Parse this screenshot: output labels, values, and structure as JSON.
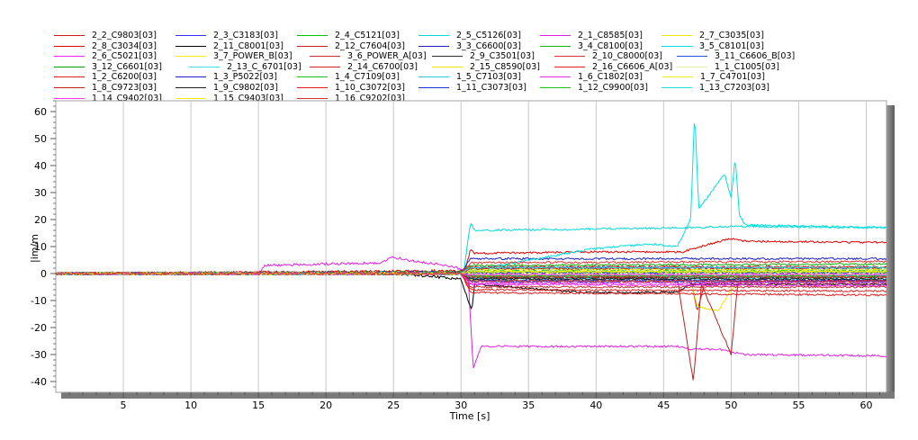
{
  "chart_data": {
    "type": "line",
    "title": "",
    "xlabel": "Time  [s]",
    "ylabel": "|im/m",
    "xlim": [
      0,
      61.5
    ],
    "ylim": [
      -44,
      64
    ],
    "xticks": [
      5,
      10,
      15,
      20,
      25,
      30,
      35,
      40,
      45,
      50,
      55,
      60
    ],
    "yticks": [
      -40,
      -30,
      -20,
      -10,
      0,
      10,
      20,
      30,
      40,
      50,
      60
    ],
    "grid": true,
    "legend_position": "top",
    "series": [
      {
        "name": "2_2_C9803[03]",
        "color": "#d01818",
        "points": [
          [
            0,
            0
          ],
          [
            30,
            0.5
          ],
          [
            30.7,
            -1.5
          ],
          [
            40,
            -1.8
          ],
          [
            47,
            -2
          ],
          [
            47.5,
            -14
          ],
          [
            48,
            -4
          ],
          [
            50,
            -3
          ],
          [
            61.5,
            -2.5
          ]
        ]
      },
      {
        "name": "2_3_C3183[03]",
        "color": "#3030ff",
        "points": [
          [
            0,
            0
          ],
          [
            30,
            0
          ],
          [
            30.7,
            2
          ],
          [
            40,
            2.3
          ],
          [
            61.5,
            2
          ]
        ]
      },
      {
        "name": "2_4_C5121[03]",
        "color": "#00c000",
        "points": [
          [
            0,
            0
          ],
          [
            30,
            0.3
          ],
          [
            30.7,
            -1
          ],
          [
            61.5,
            -1
          ]
        ]
      },
      {
        "name": "2_5_C5126[03]",
        "color": "#00d8d8",
        "points": [
          [
            0,
            0
          ],
          [
            30.2,
            0.5
          ],
          [
            30.7,
            19
          ],
          [
            31,
            16
          ],
          [
            40,
            16.5
          ],
          [
            47,
            17
          ],
          [
            50,
            17.5
          ],
          [
            61.5,
            17
          ]
        ]
      },
      {
        "name": "2_1_C8585[03]",
        "color": "#e020e0",
        "points": [
          [
            0,
            0
          ],
          [
            15,
            0
          ],
          [
            15.5,
            3
          ],
          [
            24,
            4
          ],
          [
            25,
            6
          ],
          [
            26,
            5
          ],
          [
            29,
            3
          ],
          [
            30.5,
            1
          ],
          [
            30.9,
            -35
          ],
          [
            31.5,
            -27
          ],
          [
            40,
            -27
          ],
          [
            46,
            -27
          ],
          [
            47,
            -28
          ],
          [
            49,
            -28
          ],
          [
            51,
            -30
          ],
          [
            61.5,
            -30.5
          ]
        ]
      },
      {
        "name": "2_7_C3035[03]",
        "color": "#e8e800",
        "points": [
          [
            0,
            0
          ],
          [
            30,
            0
          ],
          [
            30.7,
            -2.5
          ],
          [
            47,
            -3
          ],
          [
            47.5,
            -12
          ],
          [
            49,
            -14
          ],
          [
            50,
            -6
          ],
          [
            50.5,
            -4
          ],
          [
            61.5,
            -3.5
          ]
        ]
      },
      {
        "name": "2_8_C3034[03]",
        "color": "#e00000",
        "points": [
          [
            0,
            0
          ],
          [
            30.3,
            1
          ],
          [
            30.7,
            9
          ],
          [
            31,
            7.5
          ],
          [
            40,
            8
          ],
          [
            46.5,
            8
          ],
          [
            47,
            9
          ],
          [
            50,
            13
          ],
          [
            51,
            12
          ],
          [
            61.5,
            11.5
          ]
        ]
      },
      {
        "name": "2_11_C8001[03]",
        "color": "#000000",
        "points": [
          [
            0,
            0
          ],
          [
            25,
            0
          ],
          [
            30,
            -2
          ],
          [
            30.8,
            -14
          ],
          [
            31,
            -4
          ],
          [
            39,
            -7
          ],
          [
            46,
            -7
          ],
          [
            47,
            -4
          ],
          [
            61.5,
            -4
          ]
        ]
      },
      {
        "name": "2_12_C7604[03]",
        "color": "#c02020",
        "points": [
          [
            0,
            0
          ],
          [
            30,
            0
          ],
          [
            30.7,
            -1
          ],
          [
            46,
            -1.5
          ],
          [
            47.2,
            -40
          ],
          [
            47.8,
            -4
          ],
          [
            50,
            -30
          ],
          [
            50.5,
            -3
          ],
          [
            61.5,
            -3
          ]
        ]
      },
      {
        "name": "3_3_C6600[03]",
        "color": "#2020c0",
        "points": [
          [
            0,
            0
          ],
          [
            30,
            0.5
          ],
          [
            30.7,
            5.5
          ],
          [
            61.5,
            5.5
          ]
        ]
      },
      {
        "name": "3_4_C8100[03]",
        "color": "#10b010",
        "points": [
          [
            0,
            0
          ],
          [
            30,
            0.5
          ],
          [
            30.7,
            3
          ],
          [
            61.5,
            3.5
          ]
        ]
      },
      {
        "name": "3_5_C8101[03]",
        "color": "#00e0e0",
        "points": [
          [
            0,
            0
          ],
          [
            30,
            0
          ],
          [
            30.7,
            1
          ],
          [
            39.5,
            9
          ],
          [
            44,
            11
          ],
          [
            46,
            10
          ],
          [
            47,
            20
          ],
          [
            47.3,
            60
          ],
          [
            47.6,
            24
          ],
          [
            48.5,
            30
          ],
          [
            49.5,
            37
          ],
          [
            50,
            28
          ],
          [
            50.3,
            43
          ],
          [
            50.6,
            22
          ],
          [
            51,
            18
          ],
          [
            61.5,
            17
          ]
        ]
      },
      {
        "name": "2_6_C5021[03]",
        "color": "#ff20ff",
        "points": [
          [
            0,
            0
          ],
          [
            30,
            0
          ],
          [
            30.7,
            -4
          ],
          [
            61.5,
            -4.5
          ]
        ]
      },
      {
        "name": "3_7_POWER_B[03]",
        "color": "#f0f000",
        "points": [
          [
            0,
            0
          ],
          [
            30,
            0
          ],
          [
            30.7,
            -0.5
          ],
          [
            61.5,
            -0.5
          ]
        ]
      },
      {
        "name": "3_6_POWER_A[03]",
        "color": "#c03030",
        "points": [
          [
            0,
            0
          ],
          [
            30,
            0
          ],
          [
            30.7,
            -5
          ],
          [
            61.5,
            -5
          ]
        ]
      },
      {
        "name": "2_9_C3501[03]",
        "color": "#303030",
        "points": [
          [
            0,
            0
          ],
          [
            30,
            0
          ],
          [
            30.7,
            -1.5
          ],
          [
            61.5,
            -1.5
          ]
        ]
      },
      {
        "name": "2_10_C8000[03]",
        "color": "#e03030",
        "points": [
          [
            0,
            0
          ],
          [
            30,
            0
          ],
          [
            30.7,
            4
          ],
          [
            61.5,
            4.5
          ]
        ]
      },
      {
        "name": "3_11_C6606_B[03]",
        "color": "#3050e0",
        "points": [
          [
            0,
            0
          ],
          [
            30,
            0
          ],
          [
            30.7,
            -3
          ],
          [
            61.5,
            -3
          ]
        ]
      },
      {
        "name": "3_12_C6601[03]",
        "color": "#00a000",
        "points": [
          [
            0,
            0
          ],
          [
            30,
            0
          ],
          [
            30.7,
            0.5
          ],
          [
            61.5,
            0.5
          ]
        ]
      },
      {
        "name": "2_13_C_6701[03]",
        "color": "#40e0e0",
        "points": [
          [
            0,
            0
          ],
          [
            30,
            0
          ],
          [
            30.7,
            -2
          ],
          [
            61.5,
            -2
          ]
        ]
      },
      {
        "name": "2_14_C6700[03]",
        "color": "#d02020",
        "points": [
          [
            0,
            0
          ],
          [
            30,
            0
          ],
          [
            30.7,
            2.5
          ],
          [
            61.5,
            2.5
          ]
        ]
      },
      {
        "name": "2_15_C8590[03]",
        "color": "#e8e800",
        "points": [
          [
            0,
            0
          ],
          [
            30,
            0
          ],
          [
            30.7,
            1.5
          ],
          [
            61.5,
            1.5
          ]
        ]
      },
      {
        "name": "2_16_C6606_A[03]",
        "color": "#e02020",
        "points": [
          [
            0,
            0
          ],
          [
            30,
            0
          ],
          [
            30.7,
            -6
          ],
          [
            61.5,
            -6.5
          ]
        ]
      },
      {
        "name": "1_1_C1005[03]",
        "color": "#e8e8a0",
        "points": [
          [
            0,
            0
          ],
          [
            30,
            0
          ],
          [
            30.7,
            0
          ],
          [
            61.5,
            0
          ]
        ]
      },
      {
        "name": "1_2_C6200[03]",
        "color": "#e02020",
        "points": [
          [
            0,
            0
          ],
          [
            30,
            0
          ],
          [
            30.7,
            -7
          ],
          [
            61.5,
            -8
          ]
        ]
      },
      {
        "name": "1_3_P5022[03]",
        "color": "#2020d0",
        "points": [
          [
            0,
            0
          ],
          [
            30,
            0
          ],
          [
            30.7,
            -2.5
          ],
          [
            61.5,
            -2.5
          ]
        ]
      },
      {
        "name": "1_4_C7109[03]",
        "color": "#20c020",
        "points": [
          [
            0,
            0
          ],
          [
            30,
            0
          ],
          [
            30.7,
            1
          ],
          [
            61.5,
            1
          ]
        ]
      },
      {
        "name": "1_5_C7103[03]",
        "color": "#30d0d0",
        "points": [
          [
            0,
            0
          ],
          [
            30,
            0
          ],
          [
            30.7,
            -1
          ],
          [
            61.5,
            -1
          ]
        ]
      },
      {
        "name": "1_6_C1802[03]",
        "color": "#e030e0",
        "points": [
          [
            0,
            0
          ],
          [
            30,
            0
          ],
          [
            30.7,
            -3.5
          ],
          [
            61.5,
            -3.5
          ]
        ]
      },
      {
        "name": "1_7_C4701[03]",
        "color": "#f0f020",
        "points": [
          [
            0,
            0
          ],
          [
            30,
            0
          ],
          [
            30.7,
            0.8
          ],
          [
            61.5,
            0.8
          ]
        ]
      },
      {
        "name": "1_8_C9723[03]",
        "color": "#c02020",
        "points": [
          [
            0,
            0
          ],
          [
            30,
            0
          ],
          [
            30.7,
            1.8
          ],
          [
            61.5,
            2
          ]
        ]
      },
      {
        "name": "1_9_C9802[03]",
        "color": "#202020",
        "points": [
          [
            0,
            0
          ],
          [
            30,
            0
          ],
          [
            30.7,
            -2
          ],
          [
            61.5,
            -2
          ]
        ]
      },
      {
        "name": "1_10_C3072[03]",
        "color": "#e02020",
        "points": [
          [
            0,
            0
          ],
          [
            30,
            0
          ],
          [
            30.7,
            -1.2
          ],
          [
            61.5,
            -1.2
          ]
        ]
      },
      {
        "name": "1_11_C3073[03]",
        "color": "#2030e0",
        "points": [
          [
            0,
            0
          ],
          [
            30,
            0
          ],
          [
            30.7,
            0.3
          ],
          [
            61.5,
            0.3
          ]
        ]
      },
      {
        "name": "1_12_C9900[03]",
        "color": "#20c020",
        "points": [
          [
            0,
            0
          ],
          [
            30,
            0
          ],
          [
            30.7,
            -0.8
          ],
          [
            61.5,
            -0.8
          ]
        ]
      },
      {
        "name": "1_13_C7203[03]",
        "color": "#20e0e0",
        "points": [
          [
            0,
            0
          ],
          [
            30,
            0
          ],
          [
            30.7,
            2.2
          ],
          [
            61.5,
            2.2
          ]
        ]
      },
      {
        "name": "1_14_C9402[03]",
        "color": "#ff30ff",
        "points": [
          [
            0,
            0
          ],
          [
            30,
            0
          ],
          [
            30.7,
            -0.4
          ],
          [
            61.5,
            -0.4
          ]
        ]
      },
      {
        "name": "1_15_C9403[03]",
        "color": "#f0f000",
        "points": [
          [
            0,
            0
          ],
          [
            30,
            0
          ],
          [
            30.7,
            0.6
          ],
          [
            61.5,
            0.6
          ]
        ]
      },
      {
        "name": "1_16_C9202[03]",
        "color": "#d03030",
        "points": [
          [
            0,
            0
          ],
          [
            30,
            0
          ],
          [
            30.7,
            -2.8
          ],
          [
            61.5,
            -2.8
          ]
        ]
      }
    ]
  }
}
